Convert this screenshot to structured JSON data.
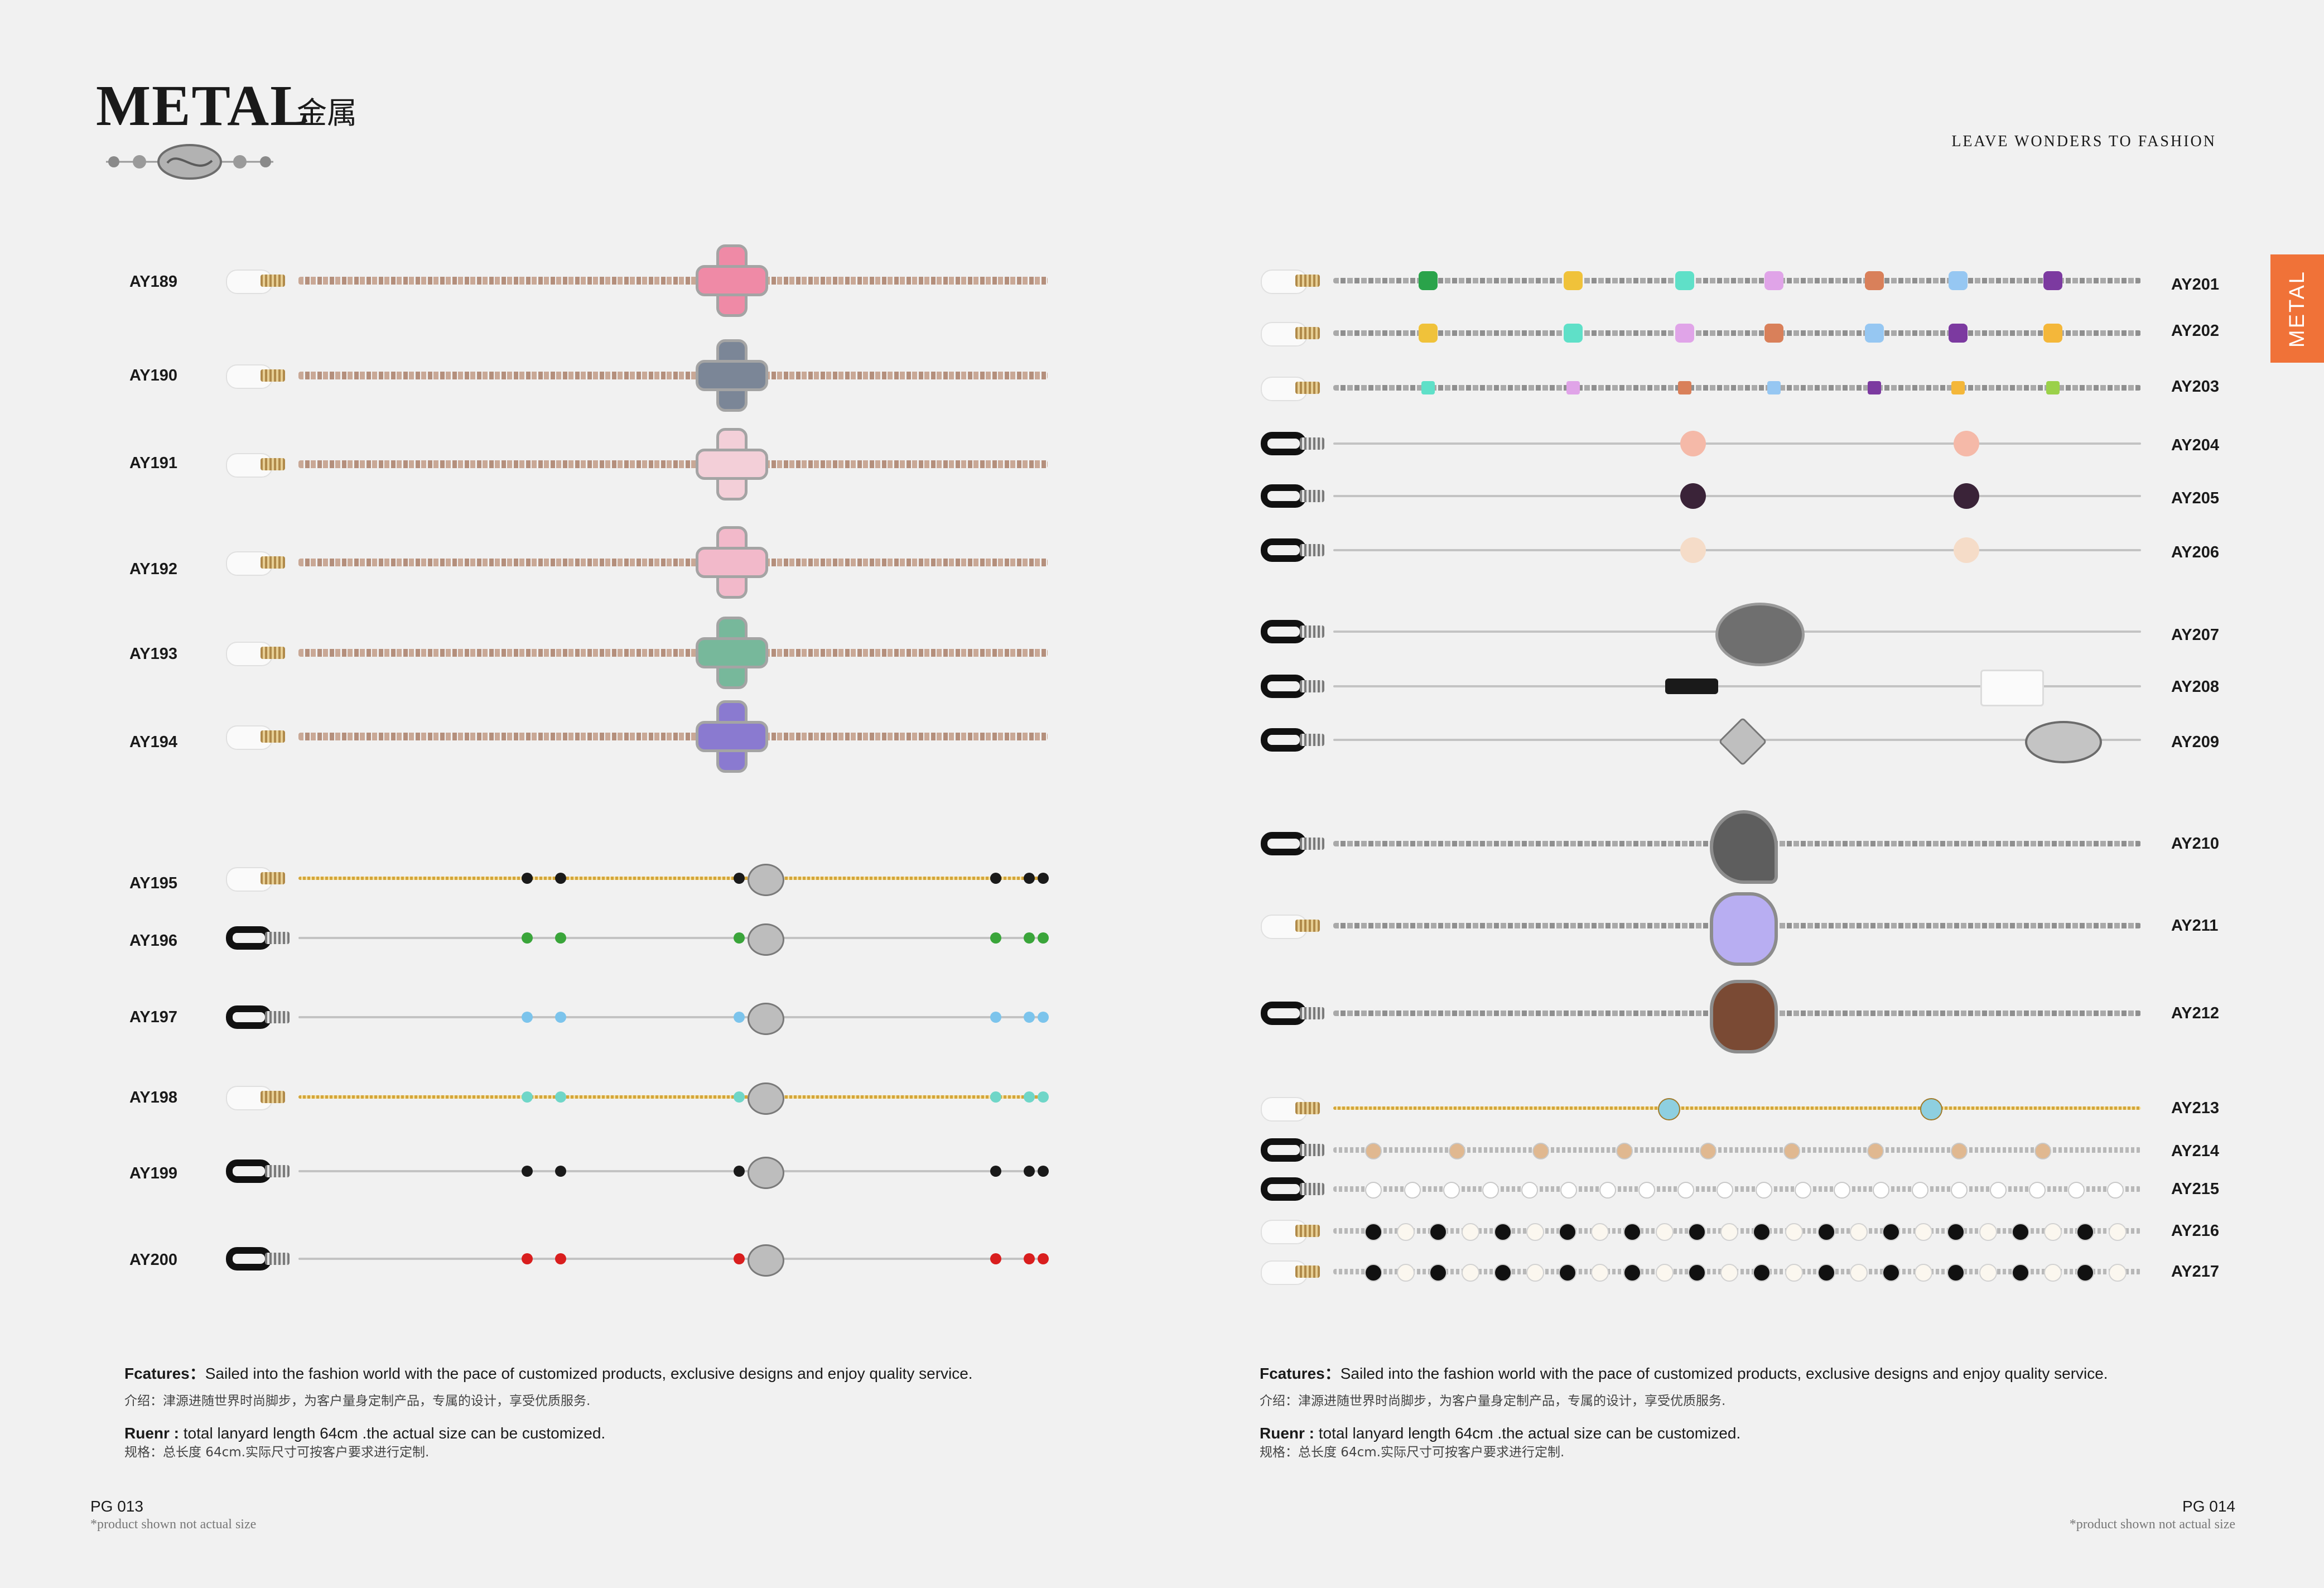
{
  "header": {
    "title": "METAL",
    "title_cn": "金属",
    "tagline": "LEAVE WONDERS TO FASHION",
    "side_tab": "METAL"
  },
  "left_page": {
    "products": [
      {
        "code": "AY189",
        "style": "rose-cross",
        "accent": "#ef8aa6"
      },
      {
        "code": "AY190",
        "style": "rose-cross",
        "accent": "#7b8697"
      },
      {
        "code": "AY191",
        "style": "rose-cross",
        "accent": "#f3cfd8"
      },
      {
        "code": "AY192",
        "style": "rose-cross",
        "accent": "#f2b9ca"
      },
      {
        "code": "AY193",
        "style": "rose-cross",
        "accent": "#77b89b"
      },
      {
        "code": "AY194",
        "style": "rose-cross",
        "accent": "#8a7ad0"
      },
      {
        "code": "AY195",
        "style": "gold-beads",
        "accent": "#1a1a1a"
      },
      {
        "code": "AY196",
        "style": "wire-beads",
        "accent": "#3aa53a"
      },
      {
        "code": "AY197",
        "style": "wire-beads",
        "accent": "#7cc4ec"
      },
      {
        "code": "AY198",
        "style": "gold-beads",
        "accent": "#6fd6c8"
      },
      {
        "code": "AY199",
        "style": "wire-beads",
        "accent": "#1a1a1a"
      },
      {
        "code": "AY200",
        "style": "wire-beads",
        "accent": "#d91e1e"
      }
    ],
    "features_label": "Fcatures：",
    "features_text": "Sailed into the fashion world with the pace of customized products, exclusive designs and enjoy quality service.",
    "features_cn": "介绍：津源进随世界时尚脚步，为客户量身定制产品，专属的设计，享受优质服务.",
    "ruenr_label": "Ruenr :",
    "ruenr_text": "total lanyard length 64cm .the actual size can be customized.",
    "ruenr_cn": "规格：总长度 64cm.实际尺寸可按客户要求进行定制.",
    "page_number": "PG 013",
    "note": "*product shown not actual size"
  },
  "right_page": {
    "products": [
      {
        "code": "AY201",
        "style": "stones",
        "accent": "#f0c23a"
      },
      {
        "code": "AY202",
        "style": "stones",
        "accent": "#5fe0c8"
      },
      {
        "code": "AY203",
        "style": "crystals",
        "accent": "#d21b1b"
      },
      {
        "code": "AY204",
        "style": "pearl-wire",
        "accent": "#f5b9a8"
      },
      {
        "code": "AY205",
        "style": "pearl-wire",
        "accent": "#3a2338"
      },
      {
        "code": "AY206",
        "style": "pearl-wire",
        "accent": "#f5dcc8"
      },
      {
        "code": "AY207",
        "style": "oval-wire",
        "accent": "#6f6f6f"
      },
      {
        "code": "AY208",
        "style": "tube-wire",
        "accent": "#1a1a1a"
      },
      {
        "code": "AY209",
        "style": "filigree-wire",
        "accent": "#9a9a9a"
      },
      {
        "code": "AY210",
        "style": "silver-heart",
        "accent": "#5e5e5e"
      },
      {
        "code": "AY211",
        "style": "silver-flower",
        "accent": "#b8aef2"
      },
      {
        "code": "AY212",
        "style": "silver-clover",
        "accent": "#7a4a34"
      },
      {
        "code": "AY213",
        "style": "gold-ball",
        "accent": "#8ecfe0"
      },
      {
        "code": "AY214",
        "style": "pearl-chain",
        "accent": "#e0b890"
      },
      {
        "code": "AY215",
        "style": "pearl-chain",
        "accent": "#ffffff"
      },
      {
        "code": "AY216",
        "style": "black-pearl",
        "accent": "#111111"
      },
      {
        "code": "AY217",
        "style": "black-pearl",
        "accent": "#111111"
      }
    ],
    "features_label": "Fcatures：",
    "features_text": "Sailed into the fashion world with the pace of customized products, exclusive designs and enjoy quality service.",
    "features_cn": "介绍：津源进随世界时尚脚步，为客户量身定制产品，专属的设计，享受优质服务.",
    "ruenr_label": "Ruenr :",
    "ruenr_text": "total lanyard length 64cm .the actual size can be customized.",
    "ruenr_cn": "规格：总长度 64cm.实际尺寸可按客户要求进行定制.",
    "page_number": "PG 014",
    "note": "*product shown not actual size"
  }
}
